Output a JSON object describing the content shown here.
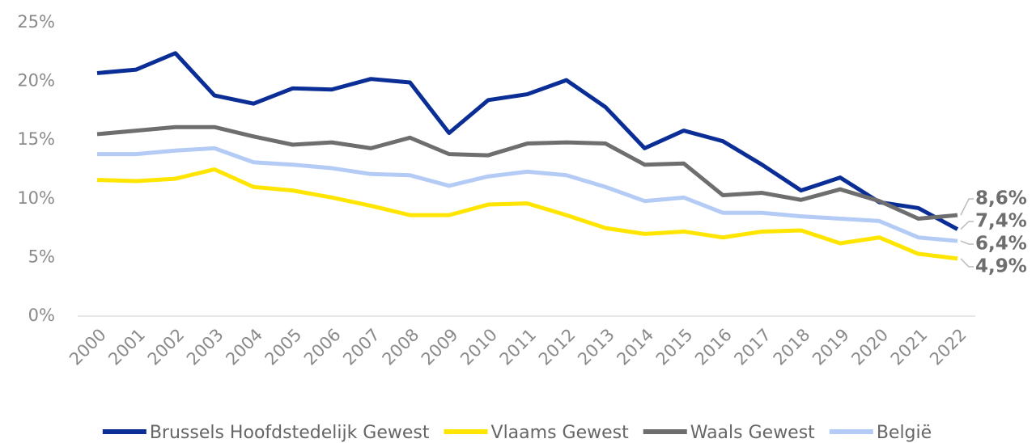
{
  "chart_data": {
    "type": "line",
    "categories": [
      "2000",
      "2001",
      "2002",
      "2003",
      "2004",
      "2005",
      "2006",
      "2007",
      "2008",
      "2009",
      "2010",
      "2011",
      "2012",
      "2013",
      "2014",
      "2015",
      "2016",
      "2017",
      "2018",
      "2019",
      "2020",
      "2021",
      "2022"
    ],
    "ylim": [
      0,
      25
    ],
    "yticks": [
      {
        "value": 0,
        "label": "0%"
      },
      {
        "value": 5,
        "label": "5%"
      },
      {
        "value": 10,
        "label": "10%"
      },
      {
        "value": 15,
        "label": "15%"
      },
      {
        "value": 20,
        "label": "20%"
      },
      {
        "value": 25,
        "label": "25%"
      }
    ],
    "grid": false,
    "legend": "bottom",
    "series": [
      {
        "name": "Brussels Hoofdstedelijk Gewest",
        "color": "#0a2d96",
        "values": [
          20.7,
          21.0,
          22.4,
          18.8,
          18.1,
          19.4,
          19.3,
          20.2,
          19.9,
          15.6,
          18.4,
          18.9,
          20.1,
          17.8,
          14.3,
          15.8,
          14.9,
          12.9,
          10.7,
          11.8,
          9.7,
          9.2,
          7.4
        ],
        "value_labels": [
          null,
          null,
          null,
          null,
          null,
          null,
          null,
          null,
          null,
          null,
          null,
          null,
          null,
          null,
          null,
          null,
          null,
          null,
          null,
          null,
          null,
          null,
          "7,4%"
        ]
      },
      {
        "name": "Vlaams Gewest",
        "color": "#ffe500",
        "values": [
          11.6,
          11.5,
          11.7,
          12.5,
          11.0,
          10.7,
          10.1,
          9.4,
          8.6,
          8.6,
          9.5,
          9.6,
          8.6,
          7.5,
          7.0,
          7.2,
          6.7,
          7.2,
          7.3,
          6.2,
          6.7,
          5.3,
          4.9
        ],
        "value_labels": [
          null,
          null,
          null,
          null,
          null,
          null,
          null,
          null,
          null,
          null,
          null,
          null,
          null,
          null,
          null,
          null,
          null,
          null,
          null,
          null,
          null,
          null,
          "4,9%"
        ]
      },
      {
        "name": "Waals Gewest",
        "color": "#6e6e6e",
        "values": [
          15.5,
          15.8,
          16.1,
          16.1,
          15.3,
          14.6,
          14.8,
          14.3,
          15.2,
          13.8,
          13.7,
          14.7,
          14.8,
          14.7,
          12.9,
          13.0,
          10.3,
          10.5,
          9.9,
          10.8,
          9.8,
          8.3,
          8.6
        ],
        "value_labels": [
          null,
          null,
          null,
          null,
          null,
          null,
          null,
          null,
          null,
          null,
          null,
          null,
          null,
          null,
          null,
          null,
          null,
          null,
          null,
          null,
          null,
          null,
          "8,6%"
        ]
      },
      {
        "name": "België",
        "color": "#b3cbf5",
        "values": [
          13.8,
          13.8,
          14.1,
          14.3,
          13.1,
          12.9,
          12.6,
          12.1,
          12.0,
          11.1,
          11.9,
          12.3,
          12.0,
          11.0,
          9.8,
          10.1,
          8.8,
          8.8,
          8.5,
          8.3,
          8.1,
          6.7,
          6.4
        ],
        "value_labels": [
          null,
          null,
          null,
          null,
          null,
          null,
          null,
          null,
          null,
          null,
          null,
          null,
          null,
          null,
          null,
          null,
          null,
          null,
          null,
          null,
          null,
          null,
          "6,4%"
        ]
      }
    ]
  }
}
